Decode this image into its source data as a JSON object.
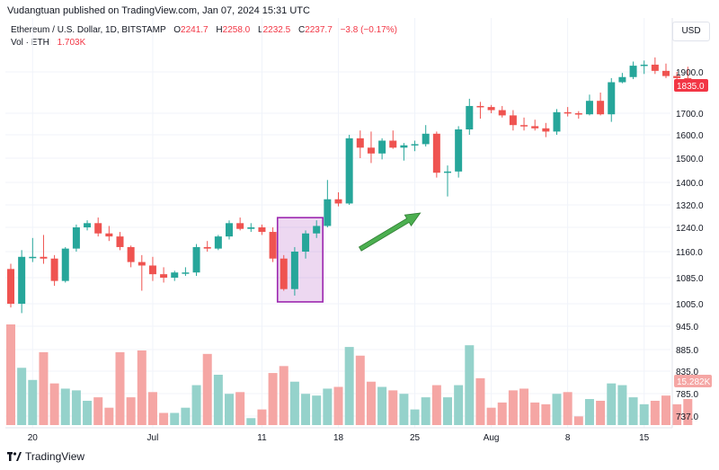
{
  "header": {
    "published_text": "Vudangtuan published on TradingView.com, Jan 07, 2024 15:31 UTC"
  },
  "legend": {
    "symbol": "Ethereum / U.S. Dollar, 1D, BITSTAMP",
    "o_label": "O",
    "o_value": "2241.7",
    "h_label": "H",
    "h_value": "2258.0",
    "l_label": "L",
    "l_value": "2232.5",
    "c_label": "C",
    "c_value": "2237.7",
    "change": "−3.8 (−0.17%)",
    "vol_label": "Vol · ETH",
    "vol_value": "1.703K"
  },
  "currency_button": "USD",
  "footer": {
    "brand": "TradingView"
  },
  "colors": {
    "up": "#26a69a",
    "down": "#ef5350",
    "up_vol": "#95d2cb",
    "down_vol": "#f5a6a4",
    "highlight": "#9c27b0",
    "arrow": "#4caf50"
  },
  "chart_data": {
    "type": "candlestick",
    "price_ticks": [
      "1900.0",
      "1700.0",
      "1600.0",
      "1500.0",
      "1400.0",
      "1320.0",
      "1240.0",
      "1160.0",
      "1085.0",
      "1005.0",
      "945.0",
      "885.0",
      "835.0",
      "785.0",
      "737.0"
    ],
    "price_tick_values": [
      1900,
      1700,
      1600,
      1500,
      1400,
      1320,
      1240,
      1160,
      1085,
      1005,
      945,
      885,
      835,
      785,
      737
    ],
    "last_price_label": "1835.0",
    "last_price": 1835,
    "volume_label": "15.282K",
    "date_ticks": [
      {
        "label": "20",
        "index": 2
      },
      {
        "label": "Jul",
        "index": 13
      },
      {
        "label": "11",
        "index": 23
      },
      {
        "label": "18",
        "index": 30
      },
      {
        "label": "25",
        "index": 37
      },
      {
        "label": "Aug",
        "index": 44
      },
      {
        "label": "8",
        "index": 51
      },
      {
        "label": "15",
        "index": 58
      }
    ],
    "candles": [
      {
        "o": 1110,
        "h": 1125,
        "l": 995,
        "c": 1005,
        "v": 58
      },
      {
        "o": 1005,
        "h": 1165,
        "l": 980,
        "c": 1145,
        "v": 33
      },
      {
        "o": 1145,
        "h": 1205,
        "l": 1130,
        "c": 1145,
        "v": 26
      },
      {
        "o": 1145,
        "h": 1215,
        "l": 1125,
        "c": 1140,
        "v": 42
      },
      {
        "o": 1140,
        "h": 1150,
        "l": 1060,
        "c": 1075,
        "v": 24
      },
      {
        "o": 1075,
        "h": 1175,
        "l": 1070,
        "c": 1170,
        "v": 21
      },
      {
        "o": 1170,
        "h": 1250,
        "l": 1160,
        "c": 1240,
        "v": 20
      },
      {
        "o": 1240,
        "h": 1265,
        "l": 1230,
        "c": 1255,
        "v": 14
      },
      {
        "o": 1255,
        "h": 1275,
        "l": 1210,
        "c": 1220,
        "v": 16
      },
      {
        "o": 1220,
        "h": 1245,
        "l": 1195,
        "c": 1210,
        "v": 10
      },
      {
        "o": 1210,
        "h": 1225,
        "l": 1165,
        "c": 1175,
        "v": 42
      },
      {
        "o": 1175,
        "h": 1180,
        "l": 1115,
        "c": 1130,
        "v": 16
      },
      {
        "o": 1130,
        "h": 1150,
        "l": 1045,
        "c": 1120,
        "v": 43
      },
      {
        "o": 1120,
        "h": 1145,
        "l": 1075,
        "c": 1095,
        "v": 19
      },
      {
        "o": 1095,
        "h": 1115,
        "l": 1070,
        "c": 1085,
        "v": 7
      },
      {
        "o": 1085,
        "h": 1105,
        "l": 1075,
        "c": 1100,
        "v": 7
      },
      {
        "o": 1100,
        "h": 1115,
        "l": 1090,
        "c": 1100,
        "v": 10
      },
      {
        "o": 1100,
        "h": 1185,
        "l": 1090,
        "c": 1175,
        "v": 23
      },
      {
        "o": 1175,
        "h": 1195,
        "l": 1160,
        "c": 1170,
        "v": 41
      },
      {
        "o": 1170,
        "h": 1215,
        "l": 1165,
        "c": 1210,
        "v": 29
      },
      {
        "o": 1210,
        "h": 1265,
        "l": 1200,
        "c": 1255,
        "v": 18
      },
      {
        "o": 1255,
        "h": 1275,
        "l": 1230,
        "c": 1235,
        "v": 19
      },
      {
        "o": 1235,
        "h": 1255,
        "l": 1225,
        "c": 1240,
        "v": 4
      },
      {
        "o": 1240,
        "h": 1250,
        "l": 1215,
        "c": 1225,
        "v": 9
      },
      {
        "o": 1225,
        "h": 1240,
        "l": 1130,
        "c": 1140,
        "v": 30
      },
      {
        "o": 1140,
        "h": 1150,
        "l": 1045,
        "c": 1050,
        "v": 34
      },
      {
        "o": 1050,
        "h": 1175,
        "l": 1030,
        "c": 1160,
        "v": 25
      },
      {
        "o": 1160,
        "h": 1230,
        "l": 1140,
        "c": 1220,
        "v": 18
      },
      {
        "o": 1220,
        "h": 1265,
        "l": 1205,
        "c": 1245,
        "v": 17
      },
      {
        "o": 1245,
        "h": 1410,
        "l": 1240,
        "c": 1340,
        "v": 21
      },
      {
        "o": 1340,
        "h": 1365,
        "l": 1315,
        "c": 1325,
        "v": 22
      },
      {
        "o": 1325,
        "h": 1600,
        "l": 1320,
        "c": 1585,
        "v": 45
      },
      {
        "o": 1585,
        "h": 1620,
        "l": 1500,
        "c": 1545,
        "v": 40
      },
      {
        "o": 1545,
        "h": 1615,
        "l": 1480,
        "c": 1520,
        "v": 25
      },
      {
        "o": 1520,
        "h": 1585,
        "l": 1495,
        "c": 1575,
        "v": 22
      },
      {
        "o": 1575,
        "h": 1620,
        "l": 1540,
        "c": 1545,
        "v": 20
      },
      {
        "o": 1545,
        "h": 1565,
        "l": 1490,
        "c": 1555,
        "v": 18
      },
      {
        "o": 1555,
        "h": 1575,
        "l": 1530,
        "c": 1560,
        "v": 9
      },
      {
        "o": 1560,
        "h": 1645,
        "l": 1550,
        "c": 1605,
        "v": 16
      },
      {
        "o": 1605,
        "h": 1615,
        "l": 1420,
        "c": 1440,
        "v": 23
      },
      {
        "o": 1440,
        "h": 1470,
        "l": 1350,
        "c": 1445,
        "v": 16
      },
      {
        "o": 1445,
        "h": 1640,
        "l": 1420,
        "c": 1625,
        "v": 23
      },
      {
        "o": 1625,
        "h": 1770,
        "l": 1600,
        "c": 1735,
        "v": 46
      },
      {
        "o": 1735,
        "h": 1755,
        "l": 1675,
        "c": 1730,
        "v": 27
      },
      {
        "o": 1730,
        "h": 1740,
        "l": 1700,
        "c": 1715,
        "v": 10
      },
      {
        "o": 1715,
        "h": 1735,
        "l": 1680,
        "c": 1690,
        "v": 13
      },
      {
        "o": 1690,
        "h": 1715,
        "l": 1620,
        "c": 1645,
        "v": 20
      },
      {
        "o": 1645,
        "h": 1680,
        "l": 1620,
        "c": 1640,
        "v": 21
      },
      {
        "o": 1640,
        "h": 1670,
        "l": 1620,
        "c": 1630,
        "v": 13
      },
      {
        "o": 1630,
        "h": 1655,
        "l": 1590,
        "c": 1615,
        "v": 12
      },
      {
        "o": 1615,
        "h": 1720,
        "l": 1600,
        "c": 1705,
        "v": 18
      },
      {
        "o": 1705,
        "h": 1730,
        "l": 1685,
        "c": 1700,
        "v": 19
      },
      {
        "o": 1700,
        "h": 1710,
        "l": 1675,
        "c": 1695,
        "v": 5
      },
      {
        "o": 1695,
        "h": 1790,
        "l": 1690,
        "c": 1760,
        "v": 15
      },
      {
        "o": 1760,
        "h": 1800,
        "l": 1690,
        "c": 1695,
        "v": 14
      },
      {
        "o": 1695,
        "h": 1870,
        "l": 1660,
        "c": 1850,
        "v": 24
      },
      {
        "o": 1850,
        "h": 1895,
        "l": 1845,
        "c": 1875,
        "v": 23
      },
      {
        "o": 1875,
        "h": 1950,
        "l": 1865,
        "c": 1930,
        "v": 16
      },
      {
        "o": 1930,
        "h": 1955,
        "l": 1890,
        "c": 1935,
        "v": 12
      },
      {
        "o": 1935,
        "h": 1970,
        "l": 1890,
        "c": 1905,
        "v": 14
      },
      {
        "o": 1905,
        "h": 1940,
        "l": 1870,
        "c": 1880,
        "v": 17
      },
      {
        "o": 1880,
        "h": 1900,
        "l": 1855,
        "c": 1870,
        "v": 12
      },
      {
        "o": 1870,
        "h": 1925,
        "l": 1825,
        "c": 1835,
        "v": 15
      }
    ],
    "highlight": {
      "from_index": 25,
      "to_index": 28
    }
  }
}
